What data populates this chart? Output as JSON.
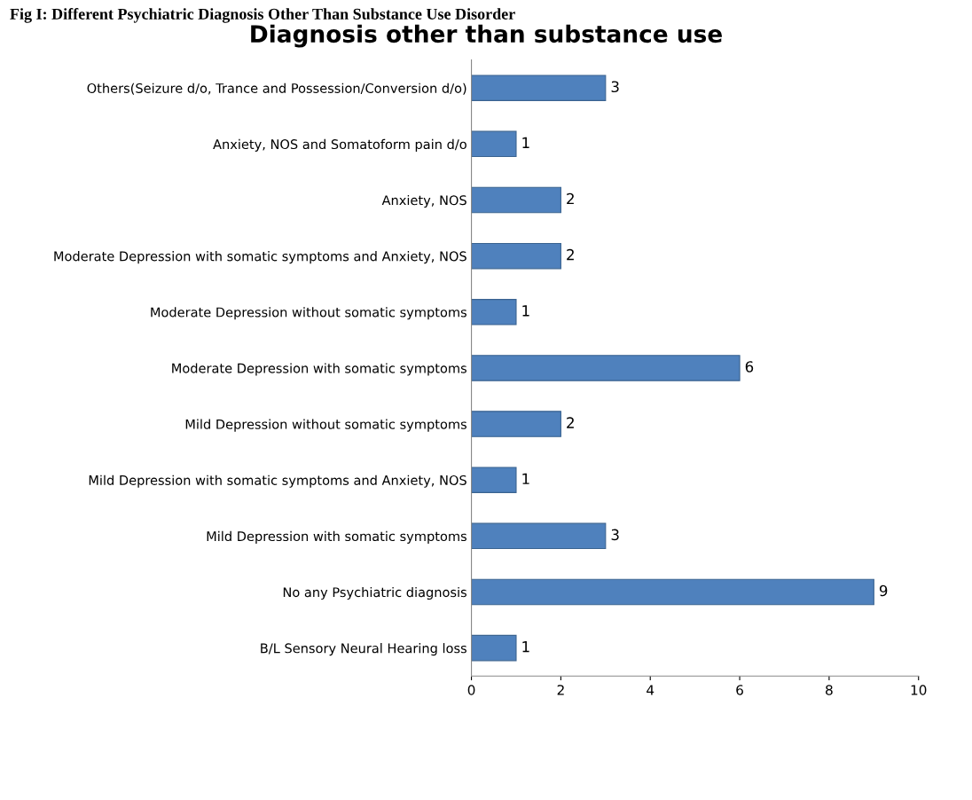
{
  "chart_data": {
    "type": "bar",
    "orientation": "horizontal",
    "title": "Diagnosis other than substance use",
    "annotations": [
      "Fig I: Different Psychiatric Diagnosis Other Than Substance Use Disorder"
    ],
    "categories": [
      "Others(Seizure d/o, Trance and Possession/Conversion d/o)",
      "Anxiety, NOS and Somatoform pain d/o",
      "Anxiety, NOS",
      "Moderate Depression with somatic symptoms and Anxiety, NOS",
      "Moderate Depression without somatic symptoms",
      "Moderate Depression with somatic symptoms",
      "Mild Depression without somatic symptoms",
      "Mild Depression with somatic symptoms and Anxiety, NOS",
      "Mild Depression with somatic symptoms",
      "No any Psychiatric diagnosis",
      "B/L Sensory Neural Hearing loss"
    ],
    "values": [
      3,
      1,
      2,
      2,
      1,
      6,
      2,
      1,
      3,
      9,
      1
    ],
    "color": "#4f81bd",
    "xlim": [
      0,
      10
    ],
    "xticks": [
      0,
      2,
      4,
      6,
      8,
      10
    ],
    "data_labels": true,
    "grid": false,
    "legend": false
  }
}
